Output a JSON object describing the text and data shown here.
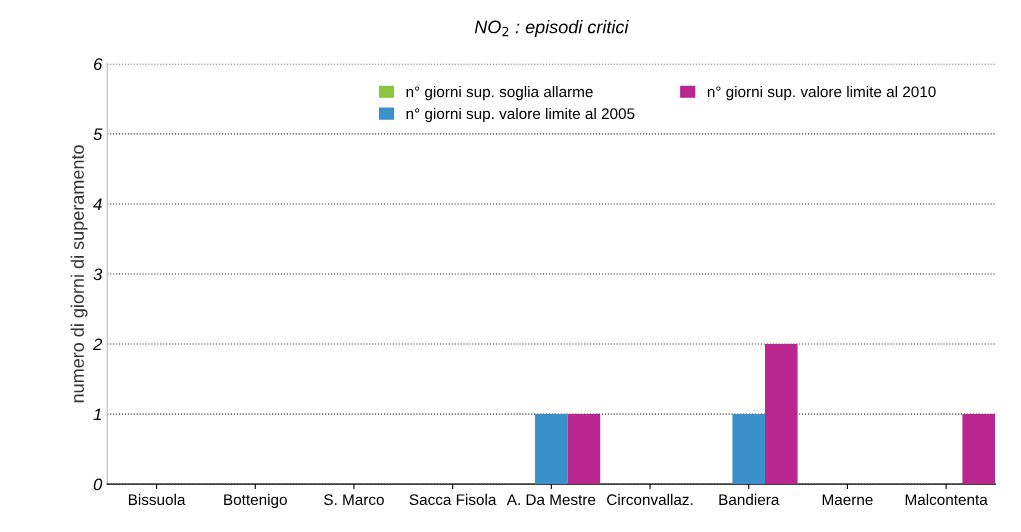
{
  "chart_data": {
    "type": "bar",
    "title": "NO$_{2}$ : episodi critici",
    "ylabel": "numero di giorni di superamento",
    "categories": [
      "Bissuola",
      "Bottenigo",
      "S. Marco",
      "Sacca Fisola",
      "A. Da Mestre",
      "Circonvallaz.",
      "Bandiera",
      "Maerne",
      "Malcontenta"
    ],
    "series": [
      {
        "name": "n° giorni sup. soglia allarme",
        "color": "#8cc63f",
        "values": [
          0,
          0,
          0,
          0,
          0,
          0,
          0,
          0,
          0
        ]
      },
      {
        "name": "n° giorni sup. valore limite al 2005",
        "color": "#3b8fcb",
        "values": [
          0,
          0,
          0,
          0,
          1,
          0,
          1,
          0,
          0
        ]
      },
      {
        "name": "n° giorni sup. valore limite al 2010",
        "color": "#b8268e",
        "values": [
          0,
          0,
          0,
          0,
          1,
          0,
          2,
          0,
          1
        ]
      }
    ],
    "ylim": [
      0,
      6
    ],
    "yticks": [
      0,
      1,
      2,
      3,
      4,
      5,
      6
    ],
    "grid": "y",
    "legend": "top"
  }
}
